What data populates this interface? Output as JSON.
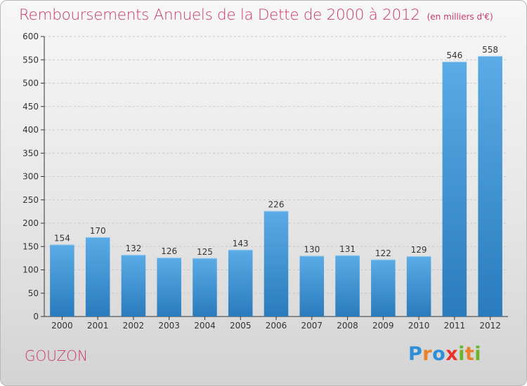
{
  "colors": {
    "accent": "#c8386a",
    "bar_light": "#5aabe6",
    "bar_dark": "#2a7bbc",
    "grid": "#c8c8c8",
    "axis": "#333333"
  },
  "header": {
    "title": "Remboursements Annuels de la Dette de 2000 à 2012",
    "unit": "(en milliers d'€)"
  },
  "footer": {
    "commune": "GOUZON",
    "brand": "Proxiti",
    "brand_colors": [
      "#2e8fd8",
      "#e8812a",
      "#2e8fd8",
      "#e8332a",
      "#6bb52b",
      "#e8812a",
      "#6bb52b"
    ]
  },
  "chart_data": {
    "type": "bar",
    "title": "Remboursements Annuels de la Dette de 2000 à 2012",
    "subtitle": "(en milliers d'€)",
    "xlabel": "",
    "ylabel": "",
    "categories": [
      "2000",
      "2001",
      "2002",
      "2003",
      "2004",
      "2005",
      "2006",
      "2007",
      "2008",
      "2009",
      "2010",
      "2011",
      "2012"
    ],
    "values": [
      154,
      170,
      132,
      126,
      125,
      143,
      226,
      130,
      131,
      122,
      129,
      546,
      558
    ],
    "ylim": [
      0,
      600
    ],
    "yticks": [
      0,
      50,
      100,
      150,
      200,
      250,
      300,
      350,
      400,
      450,
      500,
      550,
      600
    ],
    "grid": true,
    "legend": "none"
  }
}
